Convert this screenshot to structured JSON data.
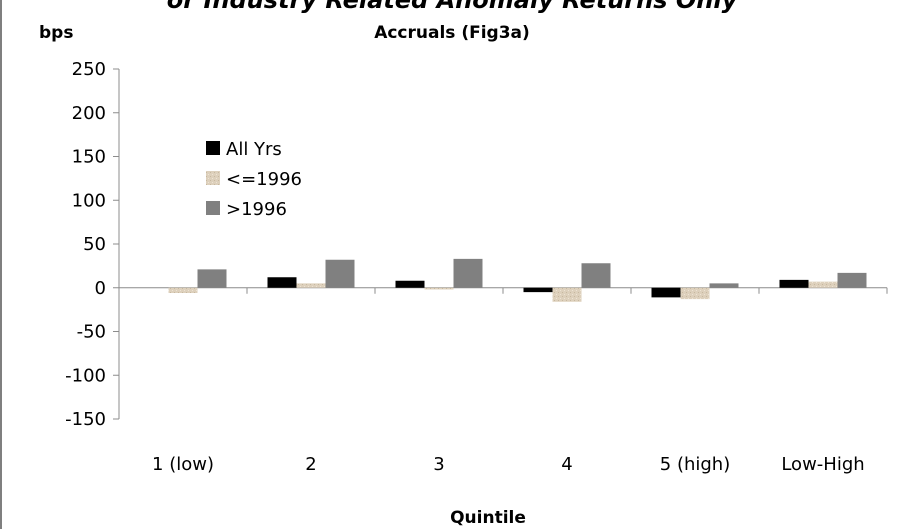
{
  "chart_data": {
    "type": "bar",
    "title": "Accruals (Fig3a)",
    "partial_heading": "or Industry Related Anomaly Returns Only",
    "ylabel": "bps",
    "xlabel": "Quintile",
    "categories": [
      "1 (low)",
      "2",
      "3",
      "4",
      "5 (high)",
      "Low-High"
    ],
    "ylim": [
      -150,
      250
    ],
    "yticks": [
      250,
      200,
      150,
      100,
      50,
      0,
      -50,
      -100,
      -150
    ],
    "grid": false,
    "legend_position": "upper-left",
    "series": [
      {
        "name": "All Yrs",
        "values": [
          0,
          12,
          8,
          -5,
          -11,
          9
        ],
        "color": "#000000"
      },
      {
        "name": "<=1996",
        "values": [
          -6,
          5,
          -2,
          -16,
          -13,
          7
        ],
        "color": "#ddd0bc"
      },
      {
        "name": ">1996",
        "values": [
          21,
          32,
          33,
          28,
          5,
          17
        ],
        "color": "#808080"
      }
    ]
  }
}
